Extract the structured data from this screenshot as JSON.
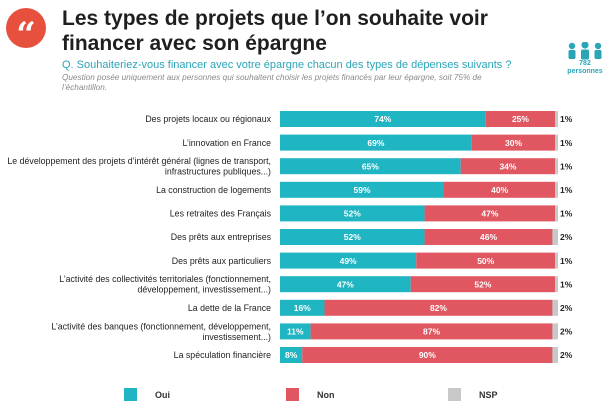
{
  "header": {
    "title": "Les types de projets que l’on souhaite voir financer avec son épargne",
    "question": "Q. Souhaiteriez-vous financer avec votre épargne chacun des types de dépenses suivants ?",
    "note": "Question posée uniquement aux personnes qui souhaitent choisir les projets financés par leur épargne, soit 75% de l’échantillon.",
    "sample_count": "782",
    "sample_unit": "personnes"
  },
  "colors": {
    "accent": "#e8503e",
    "teal": "#2aa5b8",
    "oui": "#20b5c2",
    "non": "#e05762",
    "nsp": "#c8c8c8"
  },
  "icons": {
    "quote": "quote-icon",
    "people": "people-group-icon"
  },
  "quote_glyph": "“",
  "chart_data": {
    "type": "bar",
    "orientation": "horizontal",
    "stacked": true,
    "categories": [
      [
        "Des projets locaux ou régionaux"
      ],
      [
        "L’innovation en France"
      ],
      [
        "Le développement des projets d’intérêt général (lignes de transport,",
        "infrastructures publiques...)"
      ],
      [
        "La construction de logements"
      ],
      [
        "Les retraites des Français"
      ],
      [
        "Des prêts aux entreprises"
      ],
      [
        "Des prêts aux particuliers"
      ],
      [
        "L’activité des collectivités territoriales (fonctionnement,",
        "développement, investissement...)"
      ],
      [
        "La dette de la France"
      ],
      [
        "L’activité des banques (fonctionnement, développement,",
        "investissement...)"
      ],
      [
        "La spéculation financière"
      ]
    ],
    "series": [
      {
        "name": "Oui",
        "values": [
          74,
          69,
          65,
          59,
          52,
          52,
          49,
          47,
          16,
          11,
          8
        ]
      },
      {
        "name": "Non",
        "values": [
          25,
          30,
          34,
          40,
          47,
          46,
          50,
          52,
          82,
          87,
          90
        ]
      },
      {
        "name": "NSP",
        "values": [
          1,
          1,
          1,
          1,
          1,
          2,
          1,
          1,
          2,
          2,
          2
        ]
      }
    ],
    "unit": "%",
    "xlim": [
      0,
      100
    ],
    "legend": "bottom"
  }
}
